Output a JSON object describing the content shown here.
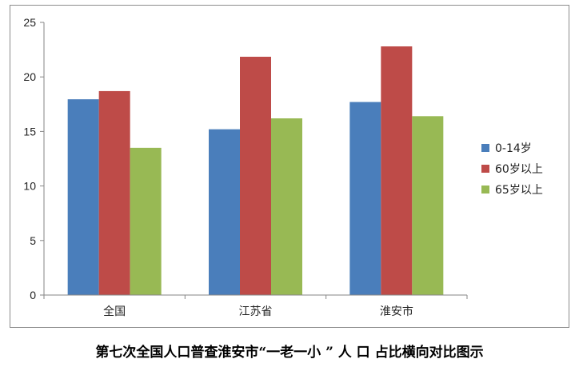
{
  "chart_data": {
    "type": "bar",
    "categories": [
      "全国",
      "江苏省",
      "淮安市"
    ],
    "series": [
      {
        "name": "0-14岁",
        "values": [
          17.95,
          15.2,
          17.7
        ],
        "color": "#4a7ebb"
      },
      {
        "name": "60岁以上",
        "values": [
          18.7,
          21.85,
          22.8
        ],
        "color": "#be4b48"
      },
      {
        "name": "65岁以上",
        "values": [
          13.5,
          16.2,
          16.4
        ],
        "color": "#98b954"
      }
    ],
    "title": "",
    "xlabel": "",
    "ylabel": "",
    "ylim": [
      0,
      25
    ],
    "yticks": [
      "0",
      "5",
      "10",
      "15",
      "20",
      "25"
    ],
    "grid": false,
    "legend_position": "right"
  },
  "caption": "第七次全国人口普查淮安市“一老一小 ” 人 口 占比横向对比图示"
}
